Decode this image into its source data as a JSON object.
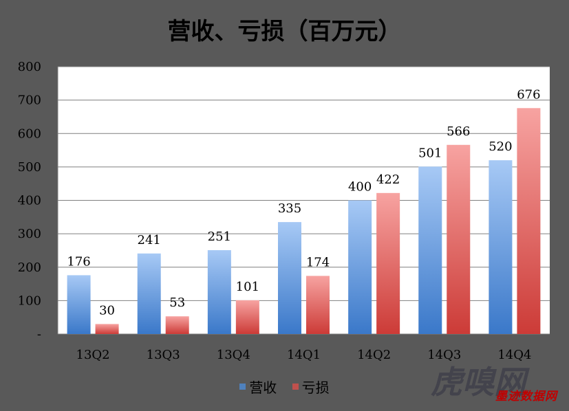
{
  "chart_data": {
    "type": "bar",
    "title": "营收、亏损（百万元）",
    "categories": [
      "13Q2",
      "13Q3",
      "13Q4",
      "14Q1",
      "14Q2",
      "14Q3",
      "14Q4"
    ],
    "series": [
      {
        "name": "营收",
        "values": [
          176,
          241,
          251,
          335,
          400,
          501,
          520
        ],
        "color": "#4F81BD"
      },
      {
        "name": "亏损",
        "values": [
          30,
          53,
          101,
          174,
          422,
          566,
          676
        ],
        "color": "#C0504D"
      }
    ],
    "ylim": [
      0,
      800
    ],
    "yticks": [
      "-",
      "100",
      "200",
      "300",
      "400",
      "500",
      "600",
      "700",
      "800"
    ],
    "grid": true,
    "legend": "bottom"
  },
  "watermark": {
    "main": "虎嗅网",
    "stamp": "墨迹数据网"
  }
}
